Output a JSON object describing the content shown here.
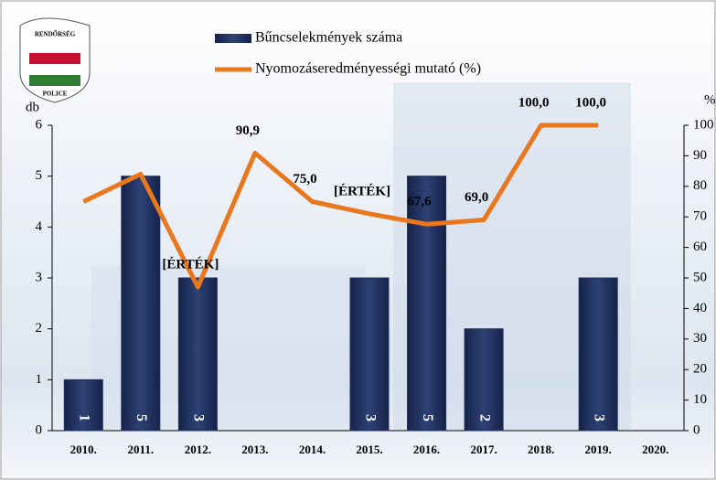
{
  "logo": {
    "top": "RENDŐRSÉG",
    "bottom": "POLICE"
  },
  "chart_data": {
    "type": "combo",
    "categories": [
      "2010.",
      "2011.",
      "2012.",
      "2013.",
      "2014.",
      "2015.",
      "2016.",
      "2017.",
      "2018.",
      "2019.",
      "2020."
    ],
    "series": [
      {
        "name": "Bűncselekmények száma",
        "type": "bar",
        "color": "#1f2f5c",
        "values": [
          1,
          5,
          3,
          null,
          null,
          3,
          5,
          2,
          null,
          3,
          null
        ]
      },
      {
        "name": "Nyomozáseredményességi mutató (%)",
        "type": "line",
        "axis": "y2",
        "color": "#e8771e",
        "values": [
          75,
          84,
          47,
          90.9,
          75.0,
          71,
          67.6,
          69.0,
          100.0,
          100.0,
          null
        ],
        "value_labels": [
          null,
          null,
          "[ÉRTÉK]",
          "90,9",
          "75,0",
          "[ÉRTÉK]",
          "67,6",
          "69,0",
          "100,0",
          "100,0",
          null
        ]
      }
    ],
    "ylabel": "db",
    "y2label": "%",
    "ylim": [
      0,
      6
    ],
    "yticks": [
      0,
      1,
      2,
      3,
      4,
      5,
      6
    ],
    "y2lim": [
      0,
      100
    ],
    "y2ticks": [
      0,
      10,
      20,
      30,
      40,
      50,
      60,
      70,
      80,
      90,
      100
    ]
  }
}
